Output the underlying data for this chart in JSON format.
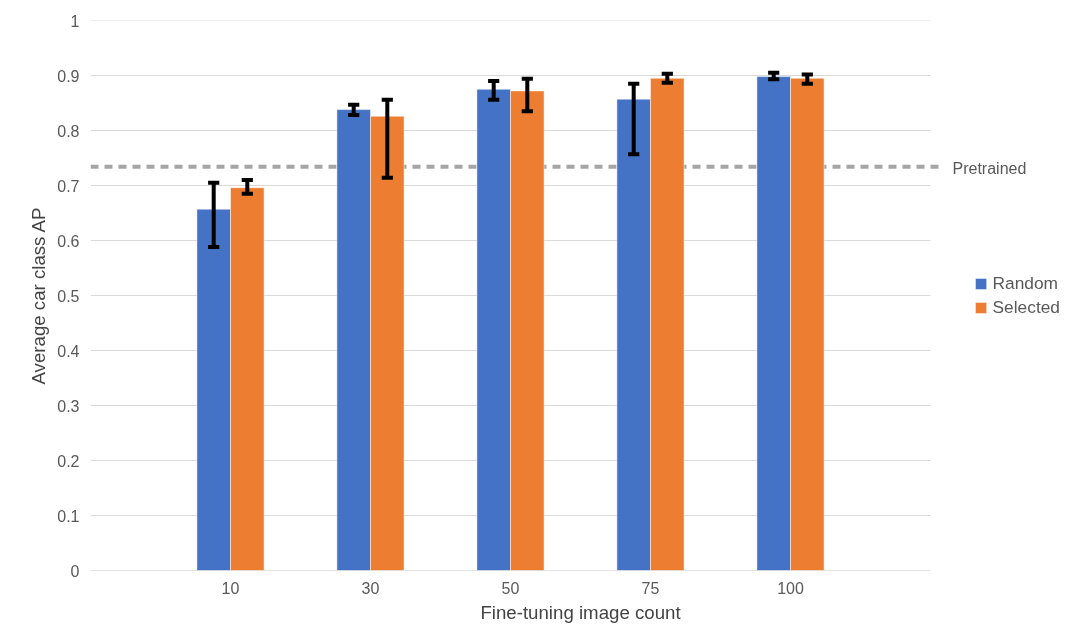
{
  "chart_data": {
    "type": "bar",
    "xlabel": "Fine-tuning image count",
    "ylabel": "Average car class AP",
    "categories": [
      "10",
      "30",
      "50",
      "75",
      "100"
    ],
    "series": [
      {
        "name": "Random",
        "color": "#4472c4",
        "values": [
          0.657,
          0.838,
          0.875,
          0.857,
          0.898
        ],
        "errors": [
          [
            0.588,
            0.705
          ],
          [
            0.828,
            0.847
          ],
          [
            0.856,
            0.89
          ],
          [
            0.757,
            0.885
          ],
          [
            0.893,
            0.905
          ]
        ]
      },
      {
        "name": "Selected",
        "color": "#ed7d31",
        "values": [
          0.696,
          0.826,
          0.872,
          0.895,
          0.895
        ],
        "errors": [
          [
            0.685,
            0.71
          ],
          [
            0.714,
            0.856
          ],
          [
            0.835,
            0.894
          ],
          [
            0.887,
            0.903
          ],
          [
            0.885,
            0.902
          ]
        ]
      }
    ],
    "ylim": [
      0,
      1
    ],
    "yticks": [
      0,
      0.1,
      0.2,
      0.3,
      0.4,
      0.5,
      0.6,
      0.7,
      0.8,
      0.9,
      1
    ],
    "grid": "y",
    "legend": "right",
    "ref_lines": [
      {
        "axis": "y",
        "value": 0.734,
        "label": "Pretrained",
        "color": "#a5a5a5",
        "line_style": "dashed"
      }
    ]
  }
}
